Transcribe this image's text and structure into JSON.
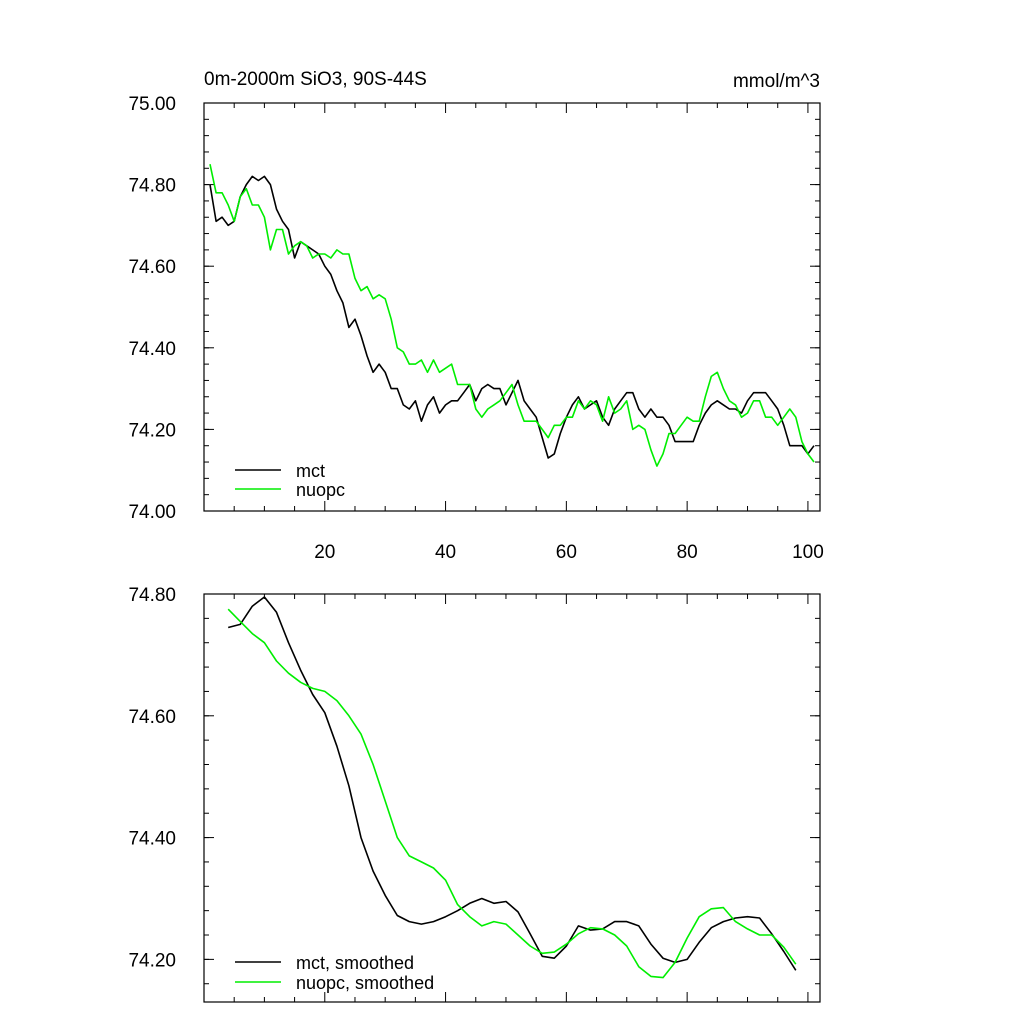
{
  "chart_data": [
    {
      "type": "line",
      "title": "0m-2000m SiO3, 90S-44S",
      "units": "mmol/m^3",
      "xlabel": "",
      "ylabel": "",
      "xlim": [
        0,
        102
      ],
      "ylim": [
        74.0,
        75.0
      ],
      "x_ticks": [
        20,
        40,
        60,
        80,
        100
      ],
      "x_tick_labels": [
        "20",
        "40",
        "60",
        "80",
        "100"
      ],
      "y_ticks": [
        74.0,
        74.2,
        74.4,
        74.6,
        74.8,
        75.0
      ],
      "y_tick_labels": [
        "74.00",
        "74.20",
        "74.40",
        "74.60",
        "74.80",
        "75.00"
      ],
      "legend_position": "bottom-left",
      "series": [
        {
          "name": "mct",
          "color": "#000000",
          "x": [
            1,
            2,
            3,
            4,
            5,
            6,
            7,
            8,
            9,
            10,
            11,
            12,
            13,
            14,
            15,
            16,
            17,
            18,
            19,
            20,
            21,
            22,
            23,
            24,
            25,
            26,
            27,
            28,
            29,
            30,
            31,
            32,
            33,
            34,
            35,
            36,
            37,
            38,
            39,
            40,
            41,
            42,
            43,
            44,
            45,
            46,
            47,
            48,
            49,
            50,
            51,
            52,
            53,
            54,
            55,
            56,
            57,
            58,
            59,
            60,
            61,
            62,
            63,
            64,
            65,
            66,
            67,
            68,
            69,
            70,
            71,
            72,
            73,
            74,
            75,
            76,
            77,
            78,
            79,
            80,
            81,
            82,
            83,
            84,
            85,
            86,
            87,
            88,
            89,
            90,
            91,
            92,
            93,
            94,
            95,
            96,
            97,
            98,
            99,
            100,
            101
          ],
          "values": [
            74.8,
            74.71,
            74.72,
            74.7,
            74.71,
            74.77,
            74.8,
            74.82,
            74.81,
            74.82,
            74.8,
            74.74,
            74.71,
            74.69,
            74.62,
            74.66,
            74.65,
            74.64,
            74.63,
            74.6,
            74.58,
            74.54,
            74.51,
            74.45,
            74.47,
            74.43,
            74.38,
            74.34,
            74.36,
            74.34,
            74.3,
            74.3,
            74.26,
            74.25,
            74.27,
            74.22,
            74.26,
            74.28,
            74.24,
            74.26,
            74.27,
            74.27,
            74.29,
            74.31,
            74.27,
            74.3,
            74.31,
            74.3,
            74.3,
            74.26,
            74.29,
            74.32,
            74.27,
            74.25,
            74.23,
            74.18,
            74.13,
            74.14,
            74.19,
            74.23,
            74.26,
            74.28,
            74.25,
            74.26,
            74.27,
            74.23,
            74.21,
            74.25,
            74.27,
            74.29,
            74.29,
            74.25,
            74.23,
            74.25,
            74.23,
            74.23,
            74.21,
            74.17,
            74.17,
            74.17,
            74.17,
            74.21,
            74.24,
            74.26,
            74.27,
            74.26,
            74.25,
            74.25,
            74.24,
            74.27,
            74.29,
            74.29,
            74.29,
            74.27,
            74.25,
            74.21,
            74.16,
            74.16,
            74.16,
            74.14,
            74.16
          ]
        },
        {
          "name": "nuopc",
          "color": "#00ee00",
          "x": [
            1,
            2,
            3,
            4,
            5,
            6,
            7,
            8,
            9,
            10,
            11,
            12,
            13,
            14,
            15,
            16,
            17,
            18,
            19,
            20,
            21,
            22,
            23,
            24,
            25,
            26,
            27,
            28,
            29,
            30,
            31,
            32,
            33,
            34,
            35,
            36,
            37,
            38,
            39,
            40,
            41,
            42,
            43,
            44,
            45,
            46,
            47,
            48,
            49,
            50,
            51,
            52,
            53,
            54,
            55,
            56,
            57,
            58,
            59,
            60,
            61,
            62,
            63,
            64,
            65,
            66,
            67,
            68,
            69,
            70,
            71,
            72,
            73,
            74,
            75,
            76,
            77,
            78,
            79,
            80,
            81,
            82,
            83,
            84,
            85,
            86,
            87,
            88,
            89,
            90,
            91,
            92,
            93,
            94,
            95,
            96,
            97,
            98,
            99,
            100,
            101
          ],
          "values": [
            74.85,
            74.78,
            74.78,
            74.75,
            74.71,
            74.77,
            74.79,
            74.75,
            74.75,
            74.72,
            74.64,
            74.69,
            74.69,
            74.63,
            74.65,
            74.66,
            74.65,
            74.62,
            74.63,
            74.63,
            74.62,
            74.64,
            74.63,
            74.63,
            74.57,
            74.54,
            74.55,
            74.52,
            74.53,
            74.52,
            74.47,
            74.4,
            74.39,
            74.36,
            74.36,
            74.37,
            74.34,
            74.37,
            74.34,
            74.35,
            74.36,
            74.31,
            74.31,
            74.31,
            74.25,
            74.23,
            74.25,
            74.26,
            74.27,
            74.29,
            74.31,
            74.26,
            74.22,
            74.22,
            74.22,
            74.2,
            74.18,
            74.21,
            74.21,
            74.23,
            74.23,
            74.27,
            74.25,
            74.27,
            74.26,
            74.22,
            74.28,
            74.24,
            74.25,
            74.27,
            74.2,
            74.21,
            74.2,
            74.15,
            74.11,
            74.14,
            74.19,
            74.19,
            74.21,
            74.23,
            74.22,
            74.22,
            74.28,
            74.33,
            74.34,
            74.3,
            74.27,
            74.26,
            74.23,
            74.24,
            74.27,
            74.27,
            74.23,
            74.23,
            74.21,
            74.23,
            74.25,
            74.23,
            74.17,
            74.14,
            74.12
          ]
        }
      ]
    },
    {
      "type": "line",
      "title": "",
      "xlabel": "",
      "ylabel": "",
      "xlim": [
        0,
        102
      ],
      "ylim": [
        74.13,
        74.8
      ],
      "x_ticks": [
        20,
        40,
        60,
        80,
        100
      ],
      "y_ticks": [
        74.2,
        74.4,
        74.6,
        74.8
      ],
      "y_tick_labels": [
        "74.20",
        "74.40",
        "74.60",
        "74.80"
      ],
      "legend_position": "bottom-left",
      "series": [
        {
          "name": "mct, smoothed",
          "color": "#000000",
          "x": [
            4,
            6,
            8,
            10,
            12,
            14,
            16,
            18,
            20,
            22,
            24,
            26,
            28,
            30,
            32,
            34,
            36,
            38,
            40,
            42,
            44,
            46,
            48,
            50,
            52,
            54,
            56,
            58,
            60,
            62,
            64,
            66,
            68,
            70,
            72,
            74,
            76,
            78,
            80,
            82,
            84,
            86,
            88,
            90,
            92,
            94,
            96,
            98
          ],
          "values": [
            74.745,
            74.75,
            74.78,
            74.795,
            74.77,
            74.72,
            74.675,
            74.635,
            74.605,
            74.55,
            74.485,
            74.4,
            74.345,
            74.305,
            74.272,
            74.262,
            74.258,
            74.262,
            74.27,
            74.28,
            74.292,
            74.3,
            74.292,
            74.295,
            74.278,
            74.242,
            74.205,
            74.202,
            74.222,
            74.255,
            74.248,
            74.25,
            74.262,
            74.262,
            74.255,
            74.225,
            74.202,
            74.195,
            74.2,
            74.228,
            74.252,
            74.262,
            74.268,
            74.27,
            74.268,
            74.242,
            74.213,
            74.182
          ]
        },
        {
          "name": "nuopc, smoothed",
          "color": "#00ee00",
          "x": [
            4,
            6,
            8,
            10,
            12,
            14,
            16,
            18,
            20,
            22,
            24,
            26,
            28,
            30,
            32,
            34,
            36,
            38,
            40,
            42,
            44,
            46,
            48,
            50,
            52,
            54,
            56,
            58,
            60,
            62,
            64,
            66,
            68,
            70,
            72,
            74,
            76,
            78,
            80,
            82,
            84,
            86,
            88,
            90,
            92,
            94,
            96,
            98
          ],
          "values": [
            74.775,
            74.755,
            74.735,
            74.72,
            74.69,
            74.67,
            74.655,
            74.645,
            74.64,
            74.625,
            74.6,
            74.57,
            74.52,
            74.46,
            74.4,
            74.37,
            74.36,
            74.35,
            74.33,
            74.29,
            74.27,
            74.255,
            74.262,
            74.258,
            74.24,
            74.222,
            74.21,
            74.212,
            74.225,
            74.242,
            74.252,
            74.25,
            74.24,
            74.222,
            74.188,
            74.172,
            74.17,
            74.195,
            74.235,
            74.27,
            74.283,
            74.285,
            74.262,
            74.25,
            74.24,
            74.24,
            74.22,
            74.192
          ]
        }
      ]
    }
  ]
}
